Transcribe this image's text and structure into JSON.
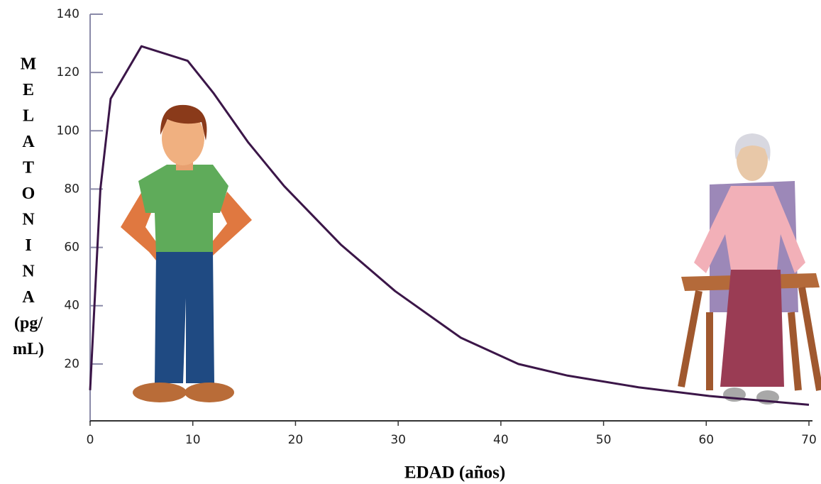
{
  "chart_data": {
    "type": "line",
    "x_label": "EDAD (años)",
    "y_label_lines": [
      "M",
      "E",
      "L",
      "A",
      "T",
      "O",
      "N",
      "I",
      "N",
      "A",
      "(pg/",
      "mL)"
    ],
    "x": [
      0,
      1,
      2,
      5,
      9.5,
      12,
      15.4,
      18.9,
      24.4,
      29.7,
      36.1,
      41.7,
      46.5,
      53.4,
      60.3,
      70
    ],
    "values": [
      11,
      80,
      111,
      129,
      124,
      113,
      96,
      81,
      61,
      45,
      29,
      20,
      16,
      12,
      9,
      6
    ],
    "color": "#3b1648",
    "xlim": [
      0,
      70
    ],
    "xticks": [
      0,
      10,
      20,
      30,
      40,
      50,
      60,
      70
    ],
    "ylim": [
      0,
      140
    ],
    "yticks": [
      20,
      40,
      60,
      80,
      100,
      120,
      140
    ]
  }
}
